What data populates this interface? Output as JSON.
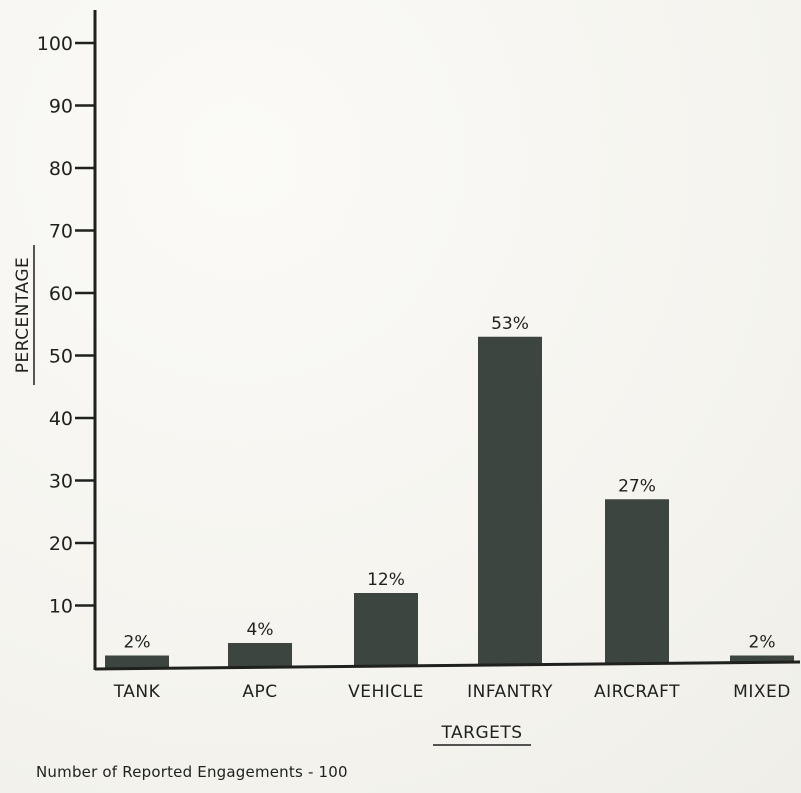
{
  "chart_data": {
    "type": "bar",
    "categories": [
      "TANK",
      "APC",
      "VEHICLE",
      "INFANTRY",
      "AIRCRAFT",
      "MIXED"
    ],
    "values": [
      2,
      4,
      12,
      53,
      27,
      2
    ],
    "data_labels": [
      "2%",
      "4%",
      "12%",
      "53%",
      "27%",
      "2%"
    ],
    "ylabel": "PERCENTAGE",
    "xlabel": "TARGETS",
    "ylim": [
      0,
      100
    ],
    "yticks": [
      10,
      20,
      30,
      40,
      50,
      60,
      70,
      80,
      90,
      100
    ],
    "ytick_labels": [
      "10",
      "20",
      "30",
      "40",
      "50",
      "60",
      "70",
      "80",
      "90",
      "100"
    ],
    "grid": false,
    "bar_color": "#3c4540"
  },
  "footnote": "Number of Reported Engagements - 100"
}
